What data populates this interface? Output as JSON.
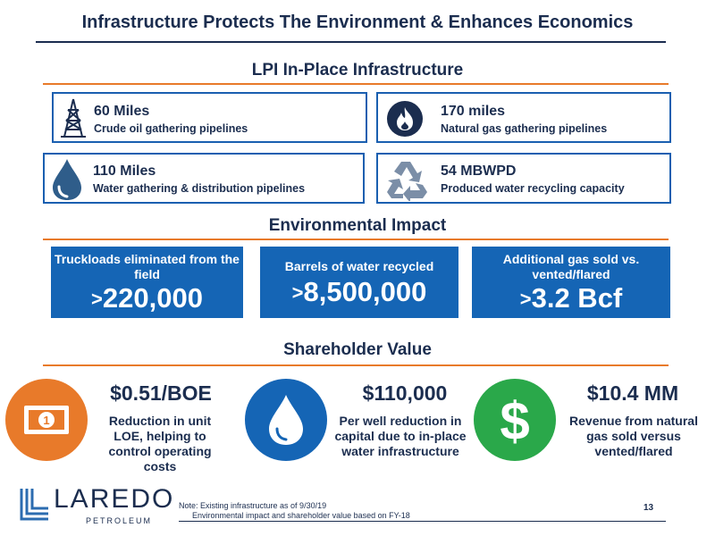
{
  "title": "Infrastructure Protects The Environment & Enhances Economics",
  "sections": {
    "infrastructure": "LPI In-Place Infrastructure",
    "environment": "Environmental Impact",
    "shareholder": "Shareholder Value"
  },
  "infrastructure": [
    {
      "value": "60 Miles",
      "desc": "Crude oil gathering pipelines",
      "icon": "oil-derrick-icon"
    },
    {
      "value": "170 miles",
      "desc": "Natural gas gathering pipelines",
      "icon": "flame-icon"
    },
    {
      "value": "110 Miles",
      "desc": "Water gathering & distribution pipelines",
      "icon": "water-drop-icon"
    },
    {
      "value": "54 MBWPD",
      "desc": "Produced water recycling capacity",
      "icon": "recycle-icon"
    }
  ],
  "environmental": [
    {
      "label": "Truckloads eliminated from the field",
      "prefix": ">",
      "value": "220,000"
    },
    {
      "label": "Barrels of water recycled",
      "prefix": ">",
      "value": "8,500,000"
    },
    {
      "label": "Additional gas sold vs. vented/flared",
      "prefix": ">",
      "value": "3.2 Bcf"
    }
  ],
  "shareholder": [
    {
      "value": "$0.51/BOE",
      "desc": "Reduction in unit LOE, helping to control operating costs",
      "icon": "money-bill-icon",
      "color": "#e87a2a"
    },
    {
      "value": "$110,000",
      "desc": "Per well reduction in capital due to in-place water infrastructure",
      "icon": "water-drop-icon",
      "color": "#1565b5"
    },
    {
      "value": "$10.4 MM",
      "desc": "Revenue from natural gas sold versus vented/flared",
      "icon": "dollar-sign-icon",
      "color": "#2aa84a"
    }
  ],
  "footer": {
    "logo_name": "LAREDO",
    "logo_sub": "PETROLEUM",
    "note1": "Note: Existing infrastructure as of 9/30/19",
    "note2": "Environmental impact and shareholder value based on FY-18",
    "page": "13"
  },
  "colors": {
    "navy": "#1b2d4f",
    "blue": "#1565b5",
    "orange": "#e87a2a",
    "green": "#2aa84a"
  }
}
